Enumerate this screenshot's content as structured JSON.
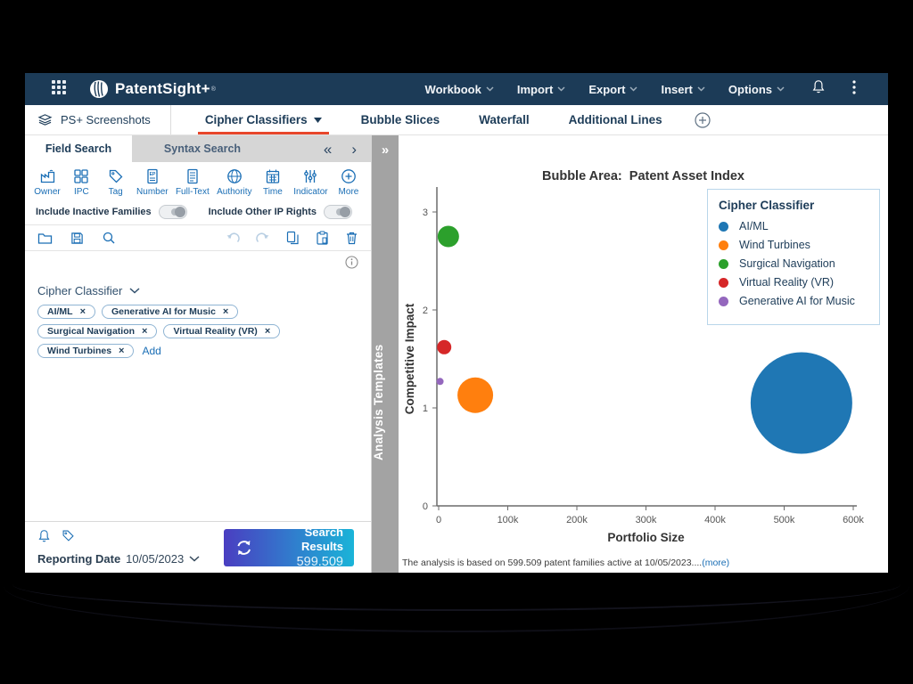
{
  "header": {
    "logo_text": "PatentSight+",
    "logo_registered": "®",
    "menus": [
      {
        "label": "Workbook"
      },
      {
        "label": "Import"
      },
      {
        "label": "Export"
      },
      {
        "label": "Insert"
      },
      {
        "label": "Options"
      }
    ]
  },
  "tab_bar": {
    "workspace_label": "PS+ Screenshots",
    "tabs": [
      {
        "label": "Cipher Classifiers",
        "active": true
      },
      {
        "label": "Bubble Slices",
        "active": false
      },
      {
        "label": "Waterfall",
        "active": false
      },
      {
        "label": "Additional Lines",
        "active": false
      }
    ]
  },
  "left_panel": {
    "search_tabs": [
      {
        "label": "Field Search",
        "active": true
      },
      {
        "label": "Syntax Search",
        "active": false
      }
    ],
    "field_icons": [
      {
        "label": "Owner"
      },
      {
        "label": "IPC"
      },
      {
        "label": "Tag"
      },
      {
        "label": "Number"
      },
      {
        "label": "Full-Text"
      },
      {
        "label": "Authority"
      },
      {
        "label": "Time"
      },
      {
        "label": "Indicator"
      },
      {
        "label": "More"
      }
    ],
    "toggles": [
      {
        "label": "Include Inactive Families",
        "state": "off"
      },
      {
        "label": "Include Other IP Rights",
        "state": "off"
      }
    ],
    "filter": {
      "title": "Cipher Classifier",
      "chips": [
        "AI/ML",
        "Generative AI for Music",
        "Surgical Navigation",
        "Virtual Reality (VR)",
        "Wind Turbines"
      ],
      "chip_close": "×",
      "add_label": "Add"
    },
    "footer": {
      "reporting_date_label": "Reporting Date",
      "reporting_date": "10/05/2023",
      "search_button_label": "Search Results",
      "search_button_count": "599.509"
    }
  },
  "templates_bar": {
    "label": "Analysis Templates",
    "collapse_icon": "»"
  },
  "chart_data": {
    "type": "scatter",
    "subtype": "bubble",
    "title": "Bubble Area:  Patent Asset Index",
    "xlabel": "Portfolio Size",
    "ylabel": "Competitive Impact",
    "x_ticks": [
      0,
      100000,
      200000,
      300000,
      400000,
      500000,
      600000
    ],
    "x_tick_labels": [
      "0",
      "100k",
      "200k",
      "300k",
      "400k",
      "500k",
      "600k"
    ],
    "y_ticks": [
      0,
      1,
      2,
      3
    ],
    "xlim": [
      0,
      620000
    ],
    "ylim": [
      0,
      3.25
    ],
    "grid": false,
    "legend_title": "Cipher Classifier",
    "legend_position": "top-right",
    "bubble_size_meaning": "Patent Asset Index",
    "series": [
      {
        "name": "AI/ML",
        "color": "#1f77b4",
        "x": 525000,
        "y": 1.05,
        "radius_px": 57
      },
      {
        "name": "Wind Turbines",
        "color": "#ff7f0e",
        "x": 53000,
        "y": 1.13,
        "radius_px": 20
      },
      {
        "name": "Surgical Navigation",
        "color": "#2ca02c",
        "x": 14000,
        "y": 2.75,
        "radius_px": 12
      },
      {
        "name": "Virtual Reality (VR)",
        "color": "#d62728",
        "x": 8000,
        "y": 1.62,
        "radius_px": 8
      },
      {
        "name": "Generative AI for Music",
        "color": "#9467bd",
        "x": 2000,
        "y": 1.27,
        "radius_px": 4
      }
    ],
    "footnote": "The analysis is based on 599.509 patent families active at 10/05/2023....",
    "footnote_link": "(more)"
  },
  "colors": {
    "header_bg": "#1c3b57",
    "accent_blue": "#1a6eb5",
    "active_tab_underline": "#e8472b",
    "button_gradient_start": "#4a3ec1",
    "button_gradient_end": "#1ab4d8"
  }
}
